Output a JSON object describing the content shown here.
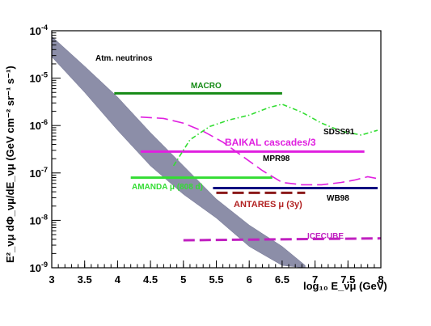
{
  "chart_data": {
    "type": "line",
    "title": "",
    "xlabel": "log₁₀ E_νμ (GeV)",
    "ylabel": "E²_νμ dΦ_νμ/dE_νμ (GeV cm⁻² sr⁻¹ s⁻¹)",
    "xlim": [
      3,
      8
    ],
    "ylim_log10": [
      -9,
      -4
    ],
    "y_log_scale": true,
    "grid": false,
    "x_ticks": [
      "3",
      "3.5",
      "4",
      "4.5",
      "5",
      "5.5",
      "6",
      "6.5",
      "7",
      "7.5",
      "8"
    ],
    "y_ticks": [
      {
        "base": "10",
        "exp": "-9"
      },
      {
        "base": "10",
        "exp": "-8"
      },
      {
        "base": "10",
        "exp": "-7"
      },
      {
        "base": "10",
        "exp": "-6"
      },
      {
        "base": "10",
        "exp": "-5"
      },
      {
        "base": "10",
        "exp": "-4"
      }
    ],
    "band": {
      "name": "Atm. neutrinos",
      "color": "#8c8ea8",
      "upper": [
        [
          3.0,
          -4.12
        ],
        [
          3.5,
          -4.75
        ],
        [
          4.0,
          -5.4
        ],
        [
          4.5,
          -6.15
        ],
        [
          5.0,
          -6.85
        ],
        [
          5.5,
          -7.55
        ],
        [
          6.0,
          -8.1
        ],
        [
          6.5,
          -8.55
        ],
        [
          6.85,
          -8.95
        ]
      ],
      "lower": [
        [
          3.0,
          -4.55
        ],
        [
          3.5,
          -5.3
        ],
        [
          4.0,
          -6.1
        ],
        [
          4.5,
          -6.85
        ],
        [
          5.0,
          -7.45
        ],
        [
          5.5,
          -7.95
        ],
        [
          6.0,
          -8.55
        ],
        [
          6.5,
          -8.95
        ],
        [
          6.85,
          -9.0
        ]
      ]
    },
    "series": [
      {
        "name": "MACRO",
        "style": "solid",
        "color": "#148a14",
        "x": [
          3.95,
          6.5
        ],
        "y": [
          -5.32,
          -5.32
        ]
      },
      {
        "name": "BAIKAL cascades/3",
        "style": "solid",
        "color": "#e020e0",
        "x": [
          4.35,
          7.75
        ],
        "y": [
          -6.55,
          -6.55
        ]
      },
      {
        "name": "AMANDA μ (808 d)",
        "style": "solid",
        "color": "#33dd33",
        "x": [
          4.2,
          6.35
        ],
        "y": [
          -7.1,
          -7.1
        ]
      },
      {
        "name": "WB98",
        "style": "solid",
        "color": "#000080",
        "x": [
          5.45,
          7.95
        ],
        "y": [
          -7.32,
          -7.32
        ]
      },
      {
        "name": "ANTARES μ (3y)",
        "style": "dashed",
        "color": "#8b1a1a",
        "x": [
          5.5,
          6.85
        ],
        "y": [
          -7.42,
          -7.42
        ]
      },
      {
        "name": "ICECUBE",
        "style": "dashed",
        "color": "#c020c0",
        "x": [
          5.0,
          8.0
        ],
        "y": [
          -8.42,
          -8.38
        ]
      },
      {
        "name": "MPR98",
        "style": "dashed",
        "color": "#e020e0",
        "x": [
          4.35,
          4.7,
          5.0,
          5.3,
          5.6,
          5.9,
          6.2,
          6.5,
          6.8,
          7.1,
          7.4,
          7.6,
          7.8,
          7.95
        ],
        "y": [
          -5.82,
          -5.85,
          -5.95,
          -6.12,
          -6.35,
          -6.65,
          -6.95,
          -7.2,
          -7.25,
          -7.25,
          -7.2,
          -7.15,
          -7.08,
          -7.12
        ]
      },
      {
        "name": "SDSS91",
        "style": "dashdot",
        "color": "#33dd33",
        "x": [
          4.85,
          5.1,
          5.4,
          5.7,
          6.0,
          6.3,
          6.5,
          6.8,
          7.1,
          7.4,
          7.7,
          7.95
        ],
        "y": [
          -6.85,
          -6.3,
          -6.02,
          -5.88,
          -5.78,
          -5.62,
          -5.55,
          -5.72,
          -5.95,
          -6.12,
          -6.2,
          -6.1
        ]
      }
    ],
    "labels": {
      "atm": "Atm. neutrinos",
      "macro": "MACRO",
      "sdss": "SDSS91",
      "baikal": "BAIKAL cascades/3",
      "mpr": "MPR98",
      "amanda": "AMANDA μ (808 d)",
      "wb": "WB98",
      "antares": "ANTARES μ (3y)",
      "icecube": "ICECUBE"
    }
  }
}
